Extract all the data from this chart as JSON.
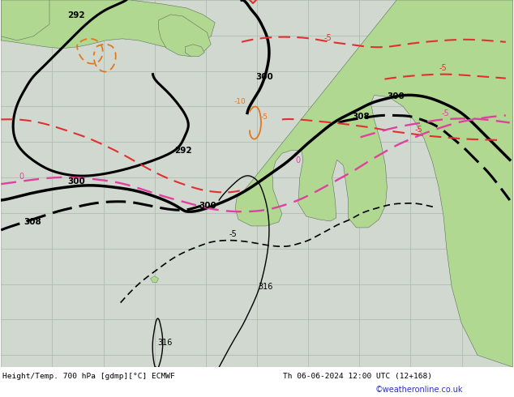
{
  "title": "Height/Temp. 700 hPa [gdmp][°C] ECMWF",
  "datetime_label": "Th 06-06-2024 12:00 UTC (12+168)",
  "watermark": "©weatheronline.co.uk",
  "figsize": [
    6.34,
    4.9
  ],
  "dpi": 100,
  "land_color": "#b0d890",
  "ocean_color": "#d0d8d0",
  "grid_color": "#a8b8a8",
  "black": "#000000",
  "red": "#e03030",
  "pink": "#e040a0",
  "orange": "#e07820",
  "lw_thick": 2.2,
  "lw_thin": 1.0,
  "lw_dash": 1.5
}
